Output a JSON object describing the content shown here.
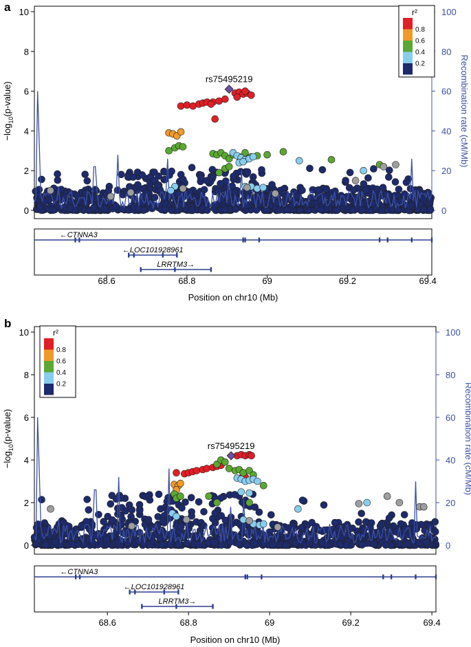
{
  "colors": {
    "recombination": "#3b4fa3",
    "r2_bins": [
      "#1d2a6b",
      "#87cdee",
      "#5aa832",
      "#f09a2a",
      "#e01f26"
    ],
    "index_snp": "#6d4ea0",
    "no_ld": "#9e9e9e",
    "outline": "#222222",
    "gene": "#2b3f8f"
  },
  "chart_data": [
    {
      "type": "scatter",
      "panel_label": "a",
      "title": "",
      "xlabel": "Position on chr10 (Mb)",
      "ylabel": "−log₁₀(p-value)",
      "ylabel_parts": [
        "−log",
        "10",
        "(p-value)"
      ],
      "y2label": "Recombination rate (cM/Mb)",
      "xlim": [
        68.42,
        69.41
      ],
      "ylim": [
        0,
        10
      ],
      "y2lim": [
        0,
        100
      ],
      "xticks": [
        "68.6",
        "68.8",
        "69",
        "69.2",
        "69.4"
      ],
      "yticks": [
        "0",
        "2",
        "4",
        "6",
        "8",
        "10"
      ],
      "y2ticks": [
        "0",
        "20",
        "40",
        "60",
        "80",
        "100"
      ],
      "legend": {
        "title": "r²",
        "position": "top-right",
        "labels": [
          "0.8",
          "0.6",
          "0.4",
          "0.2"
        ]
      },
      "index_snp": {
        "label": "rs75495219",
        "x": 68.905,
        "y": 6.1
      },
      "recombination_peaks": [
        [
          68.427,
          60
        ],
        [
          68.431,
          35
        ],
        [
          68.48,
          12
        ],
        [
          68.57,
          22
        ],
        [
          68.627,
          28
        ],
        [
          68.753,
          26
        ],
        [
          68.795,
          12
        ],
        [
          68.905,
          15
        ],
        [
          68.935,
          20
        ],
        [
          68.965,
          10
        ],
        [
          69.36,
          26
        ]
      ],
      "snp_clusters": [
        {
          "r2": "0.8+",
          "x": [
            68.785,
            68.8,
            68.815,
            68.83,
            68.84,
            68.85,
            68.865,
            68.88,
            68.895,
            68.92,
            68.93,
            68.94,
            68.95,
            68.96,
            68.925,
            68.945,
            68.87,
            68.86
          ],
          "y": [
            5.25,
            5.3,
            5.25,
            5.35,
            5.4,
            5.45,
            5.45,
            5.5,
            5.6,
            5.9,
            5.95,
            5.85,
            5.9,
            5.8,
            5.7,
            6.0,
            4.6,
            5.35
          ]
        },
        {
          "r2": "0.6-0.8",
          "x": [
            68.755,
            68.765,
            68.775,
            68.785
          ],
          "y": [
            3.9,
            3.85,
            3.75,
            3.95
          ]
        },
        {
          "r2": "0.4-0.6",
          "x": [
            68.755,
            68.77,
            68.78,
            68.79,
            68.865,
            68.875,
            68.885,
            68.895,
            68.905,
            68.915,
            68.93,
            68.945,
            68.96,
            68.975,
            69.0,
            69.04,
            69.16,
            69.28,
            68.895,
            68.905,
            68.88
          ],
          "y": [
            3.0,
            3.15,
            3.25,
            3.2,
            2.85,
            2.8,
            2.9,
            2.75,
            2.6,
            2.8,
            2.7,
            2.9,
            2.7,
            2.75,
            2.8,
            2.95,
            2.55,
            2.3,
            2.1,
            2.2,
            1.9
          ]
        },
        {
          "r2": "0.2-0.4",
          "x": [
            68.915,
            68.925,
            68.935,
            68.945,
            68.955,
            68.965,
            68.93,
            68.94,
            69.08,
            69.24,
            68.77,
            68.76,
            68.96,
            68.975,
            68.99,
            68.945
          ],
          "y": [
            2.9,
            2.75,
            2.65,
            2.55,
            2.6,
            2.7,
            2.4,
            2.45,
            2.5,
            2.0,
            1.2,
            1.0,
            1.2,
            1.1,
            1.15,
            1.2
          ]
        },
        {
          "r2": "no-ld",
          "x": [
            68.46,
            68.66,
            68.79,
            68.95,
            69.02,
            69.22,
            69.29,
            69.32,
            68.61
          ],
          "y": [
            1.0,
            0.9,
            1.1,
            1.15,
            0.85,
            1.5,
            2.2,
            2.3,
            0.7
          ]
        }
      ],
      "genes": [
        {
          "name": "CTNNA3",
          "strand": "-",
          "start": 68.42,
          "end": 69.41,
          "exons": [
            68.522,
            68.532,
            68.94,
            68.945,
            68.98,
            69.28,
            69.3,
            69.36,
            69.41
          ]
        },
        {
          "name": "LOC101928961",
          "strand": "-",
          "start": 68.655,
          "end": 68.775,
          "exons": [
            68.655,
            68.668,
            68.74,
            68.775
          ]
        },
        {
          "name": "LRRTM3",
          "strand": "+",
          "start": 68.685,
          "end": 68.86,
          "exons": [
            68.685,
            68.77,
            68.86
          ]
        }
      ]
    },
    {
      "type": "scatter",
      "panel_label": "b",
      "title": "",
      "xlabel": "Position on chr10 (Mb)",
      "ylabel": "−log₁₀(p-value)",
      "ylabel_parts": [
        "−log",
        "10",
        "(p-value)"
      ],
      "y2label": "Recombination rate (cM/Mb)",
      "xlim": [
        68.42,
        69.41
      ],
      "ylim": [
        0,
        10
      ],
      "y2lim": [
        0,
        100
      ],
      "xticks": [
        "68.6",
        "68.8",
        "69",
        "69.2",
        "69.4"
      ],
      "yticks": [
        "0",
        "2",
        "4",
        "6",
        "8",
        "10"
      ],
      "y2ticks": [
        "0",
        "20",
        "40",
        "60",
        "80",
        "100"
      ],
      "legend": {
        "title": "r²",
        "position": "top-left",
        "labels": [
          "0.8",
          "0.6",
          "0.4",
          "0.2"
        ]
      },
      "index_snp": {
        "label": "rs75495219",
        "x": 68.905,
        "y": 4.2
      },
      "recombination_peaks": [
        [
          68.427,
          60
        ],
        [
          68.431,
          35
        ],
        [
          68.48,
          12
        ],
        [
          68.57,
          26
        ],
        [
          68.627,
          32
        ],
        [
          68.753,
          36
        ],
        [
          68.795,
          12
        ],
        [
          68.905,
          18
        ],
        [
          68.935,
          22
        ],
        [
          68.965,
          10
        ],
        [
          69.36,
          30
        ]
      ],
      "snp_clusters": [
        {
          "r2": "0.8+",
          "x": [
            68.77,
            68.79,
            68.8,
            68.81,
            68.82,
            68.835,
            68.845,
            68.86,
            68.87,
            68.88,
            68.92,
            68.93,
            68.94,
            68.95,
            68.955,
            68.935,
            68.94
          ],
          "y": [
            3.4,
            3.35,
            3.4,
            3.45,
            3.5,
            3.55,
            3.6,
            3.65,
            3.7,
            3.75,
            4.2,
            4.25,
            4.2,
            4.25,
            4.2,
            3.3,
            3.2
          ]
        },
        {
          "r2": "0.6-0.8",
          "x": [
            68.765,
            68.775,
            68.78,
            68.77
          ],
          "y": [
            2.85,
            2.8,
            2.9,
            2.6
          ]
        },
        {
          "r2": "0.4-0.6",
          "x": [
            68.765,
            68.77,
            68.78,
            68.87,
            68.88,
            68.89,
            68.9,
            68.915,
            68.925,
            68.935,
            68.95,
            68.96,
            68.985,
            68.95,
            68.87,
            68.85
          ],
          "y": [
            2.4,
            2.2,
            2.3,
            3.8,
            4.0,
            3.9,
            3.6,
            3.5,
            3.55,
            3.4,
            3.5,
            3.3,
            2.8,
            2.0,
            2.0,
            2.3
          ]
        },
        {
          "r2": "0.2-0.4",
          "x": [
            68.92,
            68.93,
            68.94,
            68.95,
            68.96,
            68.97,
            68.93,
            68.95,
            69.07,
            68.76,
            68.77,
            68.96,
            68.975,
            68.985,
            68.935,
            69.24
          ],
          "y": [
            3.15,
            3.1,
            3.0,
            3.05,
            3.1,
            3.0,
            2.5,
            2.45,
            1.7,
            1.5,
            1.35,
            1.0,
            0.95,
            1.0,
            1.2,
            2.0
          ]
        },
        {
          "r2": "no-ld",
          "x": [
            68.46,
            68.66,
            68.795,
            68.95,
            69.02,
            69.22,
            69.29,
            69.32,
            69.37,
            69.38
          ],
          "y": [
            1.7,
            0.9,
            1.2,
            1.15,
            0.85,
            1.95,
            2.3,
            2.0,
            1.8,
            1.8
          ]
        }
      ],
      "genes": [
        {
          "name": "CTNNA3",
          "strand": "-",
          "start": 68.42,
          "end": 69.41,
          "exons": [
            68.522,
            68.532,
            68.94,
            68.945,
            68.98,
            69.28,
            69.3,
            69.36,
            69.41
          ]
        },
        {
          "name": "LOC101928961",
          "strand": "-",
          "start": 68.655,
          "end": 68.775,
          "exons": [
            68.655,
            68.668,
            68.74,
            68.775
          ]
        },
        {
          "name": "LRRTM3",
          "strand": "+",
          "start": 68.685,
          "end": 68.86,
          "exons": [
            68.685,
            68.77,
            68.86
          ]
        }
      ]
    }
  ]
}
